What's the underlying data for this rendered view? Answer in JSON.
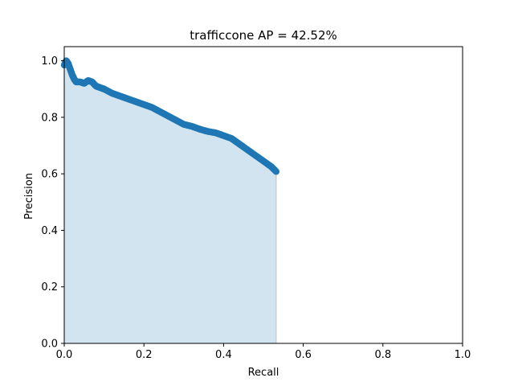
{
  "chart_data": {
    "type": "area",
    "title": "trafficcone AP = 42.52%",
    "xlabel": "Recall",
    "ylabel": "Precision",
    "xlim": [
      0.0,
      1.0
    ],
    "ylim": [
      0.0,
      1.05
    ],
    "xticks": [
      "0.0",
      "0.2",
      "0.4",
      "0.6",
      "0.8",
      "1.0"
    ],
    "yticks": [
      "0.0",
      "0.2",
      "0.4",
      "0.6",
      "0.8",
      "1.0"
    ],
    "grid": false,
    "legend": "none",
    "series": [
      {
        "color": "#1f77b4",
        "fill_color": "#1f77b4",
        "x": [
          0.0,
          0.005,
          0.01,
          0.015,
          0.02,
          0.025,
          0.03,
          0.04,
          0.05,
          0.06,
          0.07,
          0.08,
          0.09,
          0.1,
          0.12,
          0.14,
          0.16,
          0.18,
          0.2,
          0.22,
          0.24,
          0.26,
          0.28,
          0.3,
          0.32,
          0.34,
          0.36,
          0.38,
          0.4,
          0.42,
          0.44,
          0.46,
          0.48,
          0.5,
          0.52,
          0.532
        ],
        "y": [
          0.985,
          1.0,
          0.99,
          0.97,
          0.95,
          0.935,
          0.925,
          0.925,
          0.92,
          0.93,
          0.925,
          0.91,
          0.905,
          0.9,
          0.885,
          0.875,
          0.865,
          0.855,
          0.845,
          0.835,
          0.82,
          0.805,
          0.79,
          0.775,
          0.768,
          0.758,
          0.75,
          0.745,
          0.735,
          0.725,
          0.705,
          0.685,
          0.665,
          0.645,
          0.625,
          0.608
        ]
      }
    ]
  }
}
